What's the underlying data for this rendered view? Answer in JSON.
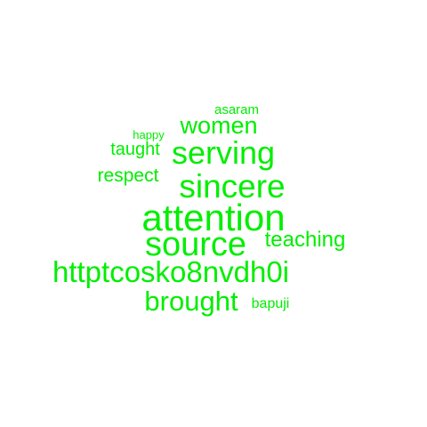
{
  "word_cloud": {
    "color": "#00ee00",
    "words": {
      "asaram": "asaram",
      "happy": "happy",
      "women": "women",
      "taught": "taught",
      "serving": "serving",
      "respect": "respect",
      "sincere": "sincere",
      "attention": "attention",
      "source": "source",
      "teaching": "teaching",
      "link": "httptcosko8nvdh0i",
      "brought": "brought",
      "bapuji": "bapuji"
    }
  }
}
